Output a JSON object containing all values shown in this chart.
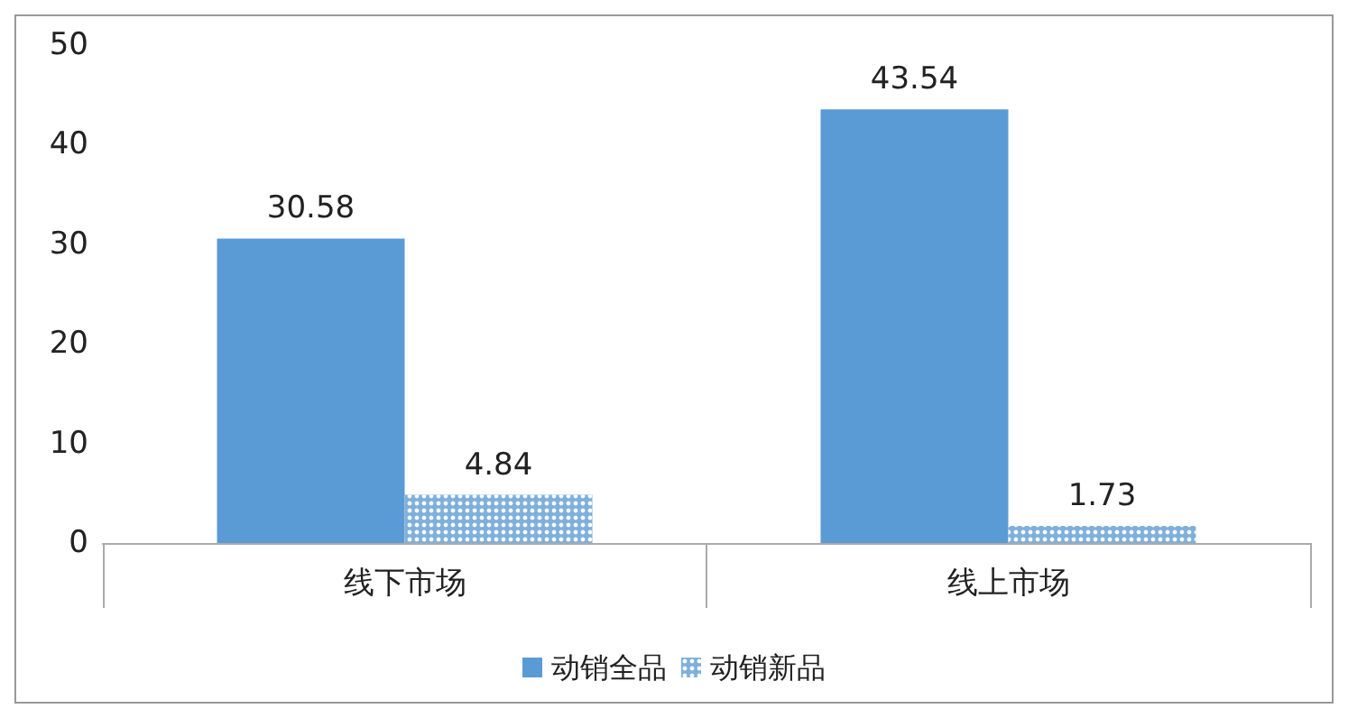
{
  "chart_data": {
    "type": "bar",
    "categories": [
      "线下市场",
      "线上市场"
    ],
    "series": [
      {
        "name": "动销全品",
        "color": "#5b9bd5",
        "values": [
          30.58,
          43.54
        ]
      },
      {
        "name": "动销新品",
        "color": "#7fb0dc",
        "values": [
          4.84,
          1.73
        ]
      }
    ],
    "ylim": [
      0,
      50
    ],
    "yticks": [
      0,
      10,
      20,
      30,
      40,
      50
    ],
    "grid": false,
    "legend": "bottom",
    "data_labels": true
  }
}
